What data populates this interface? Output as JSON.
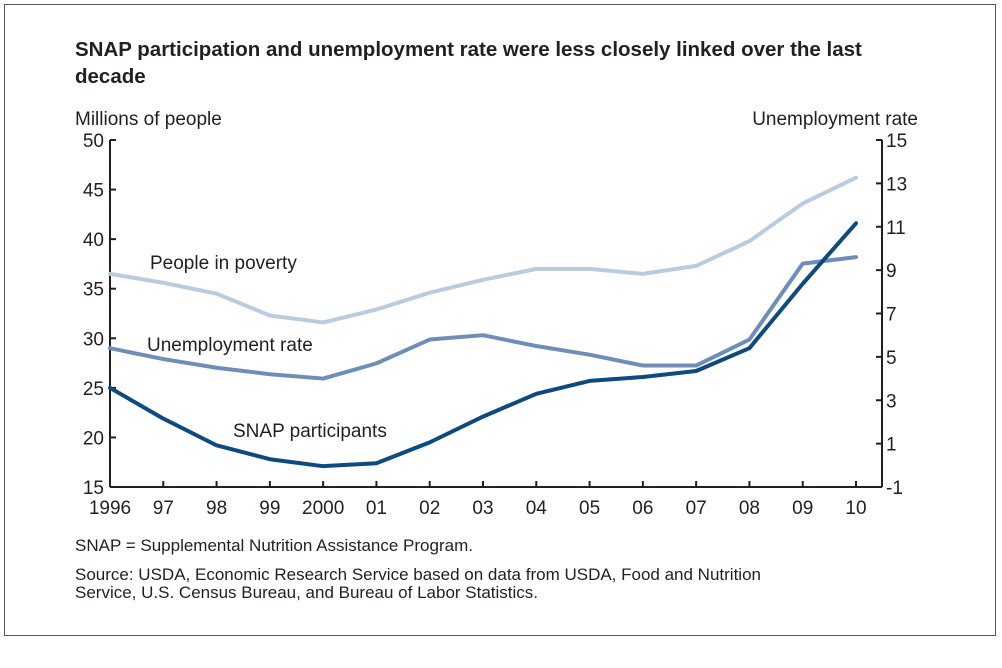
{
  "chart_data": {
    "type": "line",
    "title": "SNAP participation and unemployment rate were less closely linked over the last decade",
    "ylabel_left": "Millions of people",
    "ylabel_right": "Unemployment rate",
    "ylim_left": [
      15,
      50
    ],
    "ylim_right": [
      -1,
      15
    ],
    "yticks_left": [
      "50",
      "45",
      "40",
      "35",
      "30",
      "25",
      "20",
      "15"
    ],
    "yticks_right": [
      "15",
      "13",
      "11",
      "9",
      "7",
      "5",
      "3",
      "1",
      "-1"
    ],
    "x": [
      1996,
      1997,
      1998,
      1999,
      2000,
      2001,
      2002,
      2003,
      2004,
      2005,
      2006,
      2007,
      2008,
      2009,
      2010
    ],
    "xtick_labels": [
      "1996",
      "97",
      "98",
      "99",
      "2000",
      "01",
      "02",
      "03",
      "04",
      "05",
      "06",
      "07",
      "08",
      "09",
      "10"
    ],
    "grid": false,
    "series": [
      {
        "name": "People in poverty",
        "axis": "left",
        "color": "#b9cbe0",
        "values": [
          36.5,
          35.6,
          34.5,
          32.3,
          31.6,
          32.9,
          34.6,
          35.9,
          37.0,
          37.0,
          36.5,
          37.3,
          39.8,
          43.6,
          46.2
        ]
      },
      {
        "name": "Unemployment rate",
        "axis": "right",
        "color": "#6d8fb7",
        "values": [
          5.4,
          4.9,
          4.5,
          4.2,
          4.0,
          4.7,
          5.8,
          6.0,
          5.5,
          5.1,
          4.6,
          4.6,
          5.8,
          9.3,
          9.6
        ]
      },
      {
        "name": "SNAP participants",
        "axis": "left",
        "color": "#0d4a7e",
        "values": [
          25.0,
          21.9,
          19.2,
          17.8,
          17.1,
          17.4,
          19.5,
          22.1,
          24.4,
          25.7,
          26.1,
          26.7,
          29.0,
          35.5,
          41.6
        ]
      }
    ]
  },
  "notes": {
    "abbrev": "SNAP = Supplemental Nutrition Assistance Program.",
    "source_line1": "Source: USDA, Economic Research Service based on data from USDA, Food and Nutrition",
    "source_line2": "Service, U.S. Census Bureau, and Bureau of Labor Statistics."
  }
}
